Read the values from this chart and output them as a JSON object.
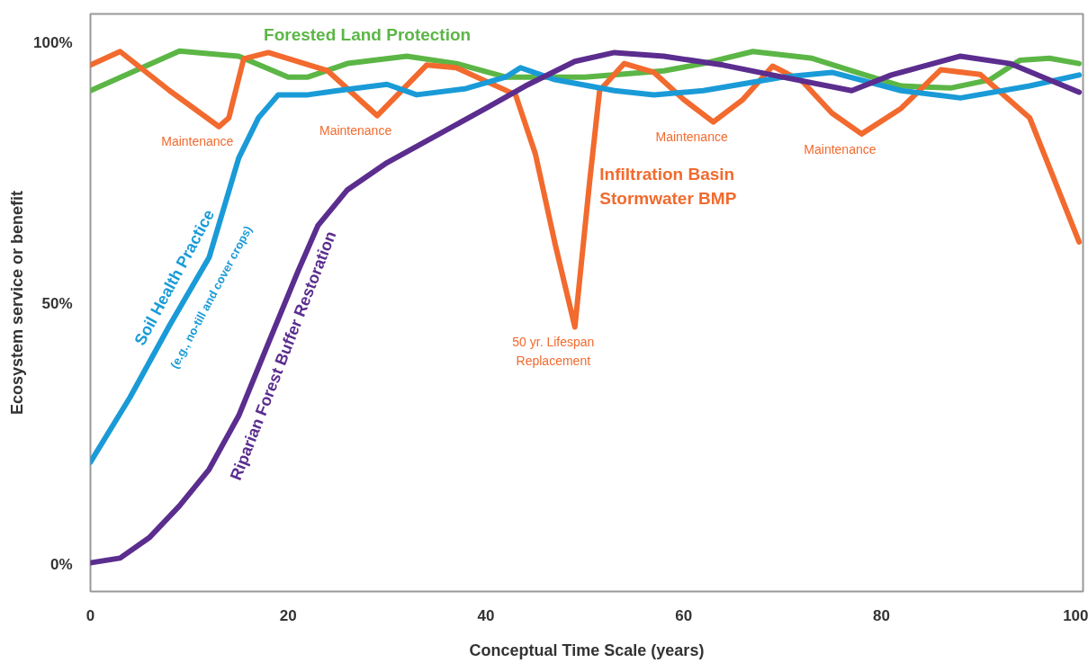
{
  "chart_data": {
    "type": "line",
    "xlabel": "Conceptual Time Scale (years)",
    "ylabel": "Ecosystem service or benefit",
    "xlim": [
      0,
      100.4
    ],
    "ylim": [
      -5.2,
      105.5
    ],
    "xticks": [
      0,
      20,
      40,
      60,
      80,
      100
    ],
    "yticks": [
      {
        "value": 0,
        "label": "0%"
      },
      {
        "value": 50,
        "label": "50%"
      },
      {
        "value": 100,
        "label": "100%"
      }
    ],
    "grid": false,
    "series": [
      {
        "name": "Forested Land Protection",
        "color": "#5cb646",
        "x": [
          0,
          9,
          15,
          20,
          22,
          26,
          32,
          37,
          42,
          50,
          58,
          62,
          67,
          73,
          78,
          82,
          87,
          91,
          94,
          97,
          100
        ],
        "values": [
          90.8,
          98.4,
          97.4,
          93.4,
          93.4,
          96,
          97.4,
          96,
          93.4,
          93.4,
          94.6,
          96,
          98.3,
          97,
          94,
          91.7,
          91.3,
          92.9,
          96.6,
          97,
          96
        ]
      },
      {
        "name": "Infiltration Basin\nStormwater BMP",
        "color": "#f26a2e",
        "x": [
          0,
          3,
          8,
          13,
          14,
          15.5,
          18,
          24,
          29,
          34,
          37,
          43,
          45,
          47,
          49,
          50.5,
          51.5,
          54,
          57,
          60,
          63,
          66,
          69,
          72,
          75,
          78,
          82,
          86,
          90,
          95,
          100
        ],
        "values": [
          95.7,
          98.3,
          90.8,
          83.9,
          85.6,
          96.9,
          98.1,
          94.6,
          86,
          95.7,
          95.2,
          90,
          78.7,
          61.4,
          45.5,
          73.5,
          90.8,
          96,
          94.3,
          89.1,
          84.8,
          89.1,
          95.5,
          92.6,
          86.5,
          82.5,
          87.4,
          94.8,
          93.9,
          85.6,
          61.8
        ]
      },
      {
        "name": "Soil Health Practice\n(e.g., no-till and cover crops)",
        "color": "#1a9bd7",
        "x": [
          0,
          4,
          8,
          12,
          15,
          17,
          19,
          22,
          25,
          30,
          33,
          38,
          42,
          43.5,
          47,
          53,
          57,
          62,
          70,
          75,
          82,
          88,
          95,
          100
        ],
        "values": [
          19.6,
          32,
          45.8,
          58.8,
          77.9,
          85.6,
          90,
          90,
          90.8,
          92,
          90,
          91.2,
          93.4,
          95.2,
          92.9,
          90.8,
          90,
          90.8,
          93.4,
          94.3,
          90.8,
          89.4,
          91.7,
          93.8
        ]
      },
      {
        "name": "Riparian Forest Buffer Restoration",
        "color": "#5b2d8e",
        "x": [
          0,
          3,
          6,
          9,
          12,
          15,
          18,
          21,
          23,
          26,
          30,
          35,
          40,
          44,
          49,
          53,
          58,
          64,
          70,
          77,
          81,
          88,
          93,
          100
        ],
        "values": [
          0.3,
          1.2,
          5.2,
          11.2,
          18.2,
          28.5,
          42.4,
          56.2,
          64.9,
          71.8,
          77,
          82.2,
          87.4,
          91.7,
          96.4,
          98.1,
          97.4,
          95.7,
          93.4,
          90.8,
          93.8,
          97.4,
          96,
          90.5
        ]
      }
    ],
    "annotations": [
      {
        "text": "Maintenance",
        "x": 13,
        "y": 83.9
      },
      {
        "text": "Maintenance",
        "x": 29,
        "y": 86
      },
      {
        "text": "Maintenance",
        "x": 63,
        "y": 84.8
      },
      {
        "text": "Maintenance",
        "x": 78,
        "y": 82.5
      },
      {
        "text": "50 yr. Lifespan\nReplacement",
        "x": 49,
        "y": 45.5
      }
    ]
  }
}
